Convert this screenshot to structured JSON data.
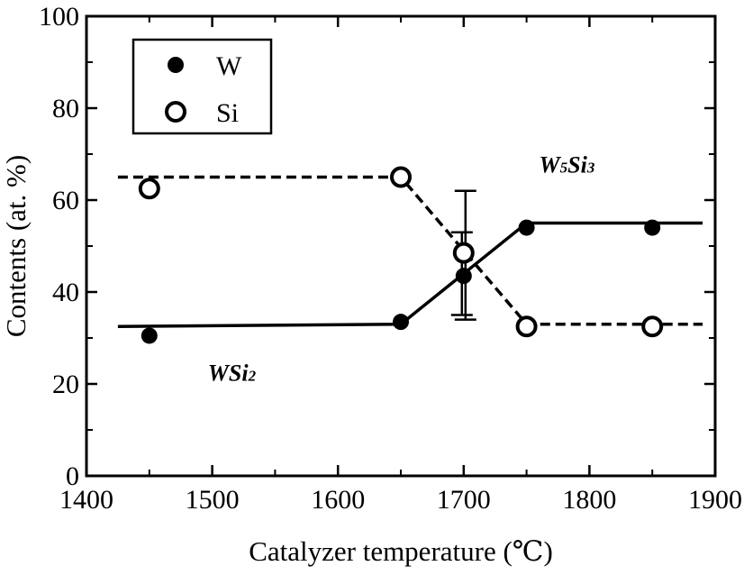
{
  "chart_data": {
    "type": "scatter",
    "xlabel": "Catalyzer temperature (℃)",
    "ylabel": "Contents (at. %)",
    "xlim": [
      1400,
      1900
    ],
    "ylim": [
      0,
      100
    ],
    "x_ticks": [
      "1400",
      "1500",
      "1600",
      "1700",
      "1800",
      "1900"
    ],
    "y_ticks": [
      "0",
      "20",
      "40",
      "60",
      "80",
      "100"
    ],
    "grid": false,
    "legend_position": "top-left",
    "series": [
      {
        "name": "W",
        "marker": "filled-circle",
        "x": [
          1450,
          1650,
          1700,
          1750,
          1850
        ],
        "y": [
          30.5,
          33.5,
          43.5,
          54,
          54
        ],
        "trend_line": {
          "style": "solid",
          "x": [
            1425,
            1650,
            1750,
            1890
          ],
          "y": [
            32.5,
            33,
            55,
            55
          ]
        }
      },
      {
        "name": "Si",
        "marker": "open-circle",
        "x": [
          1450,
          1650,
          1700,
          1750,
          1850
        ],
        "y": [
          62.5,
          65,
          48.5,
          32.5,
          32.5
        ],
        "trend_line": {
          "style": "dashed",
          "x": [
            1425,
            1650,
            1750,
            1890
          ],
          "y": [
            65,
            65,
            33,
            33
          ]
        }
      }
    ],
    "error_bars": [
      {
        "x": 1700,
        "low": 34,
        "high": 62
      },
      {
        "x": 1700,
        "low": 35,
        "high": 53
      }
    ],
    "annotations": [
      {
        "id": "wsi2",
        "main": "WSi",
        "sub": "2",
        "x": 1450,
        "y": 23
      },
      {
        "id": "w5si3",
        "parts": [
          {
            "text": "W",
            "sub": false
          },
          {
            "text": "5",
            "sub": true
          },
          {
            "text": "Si",
            "sub": false
          },
          {
            "text": "3",
            "sub": true
          }
        ],
        "x": 1760,
        "y": 66
      }
    ]
  }
}
